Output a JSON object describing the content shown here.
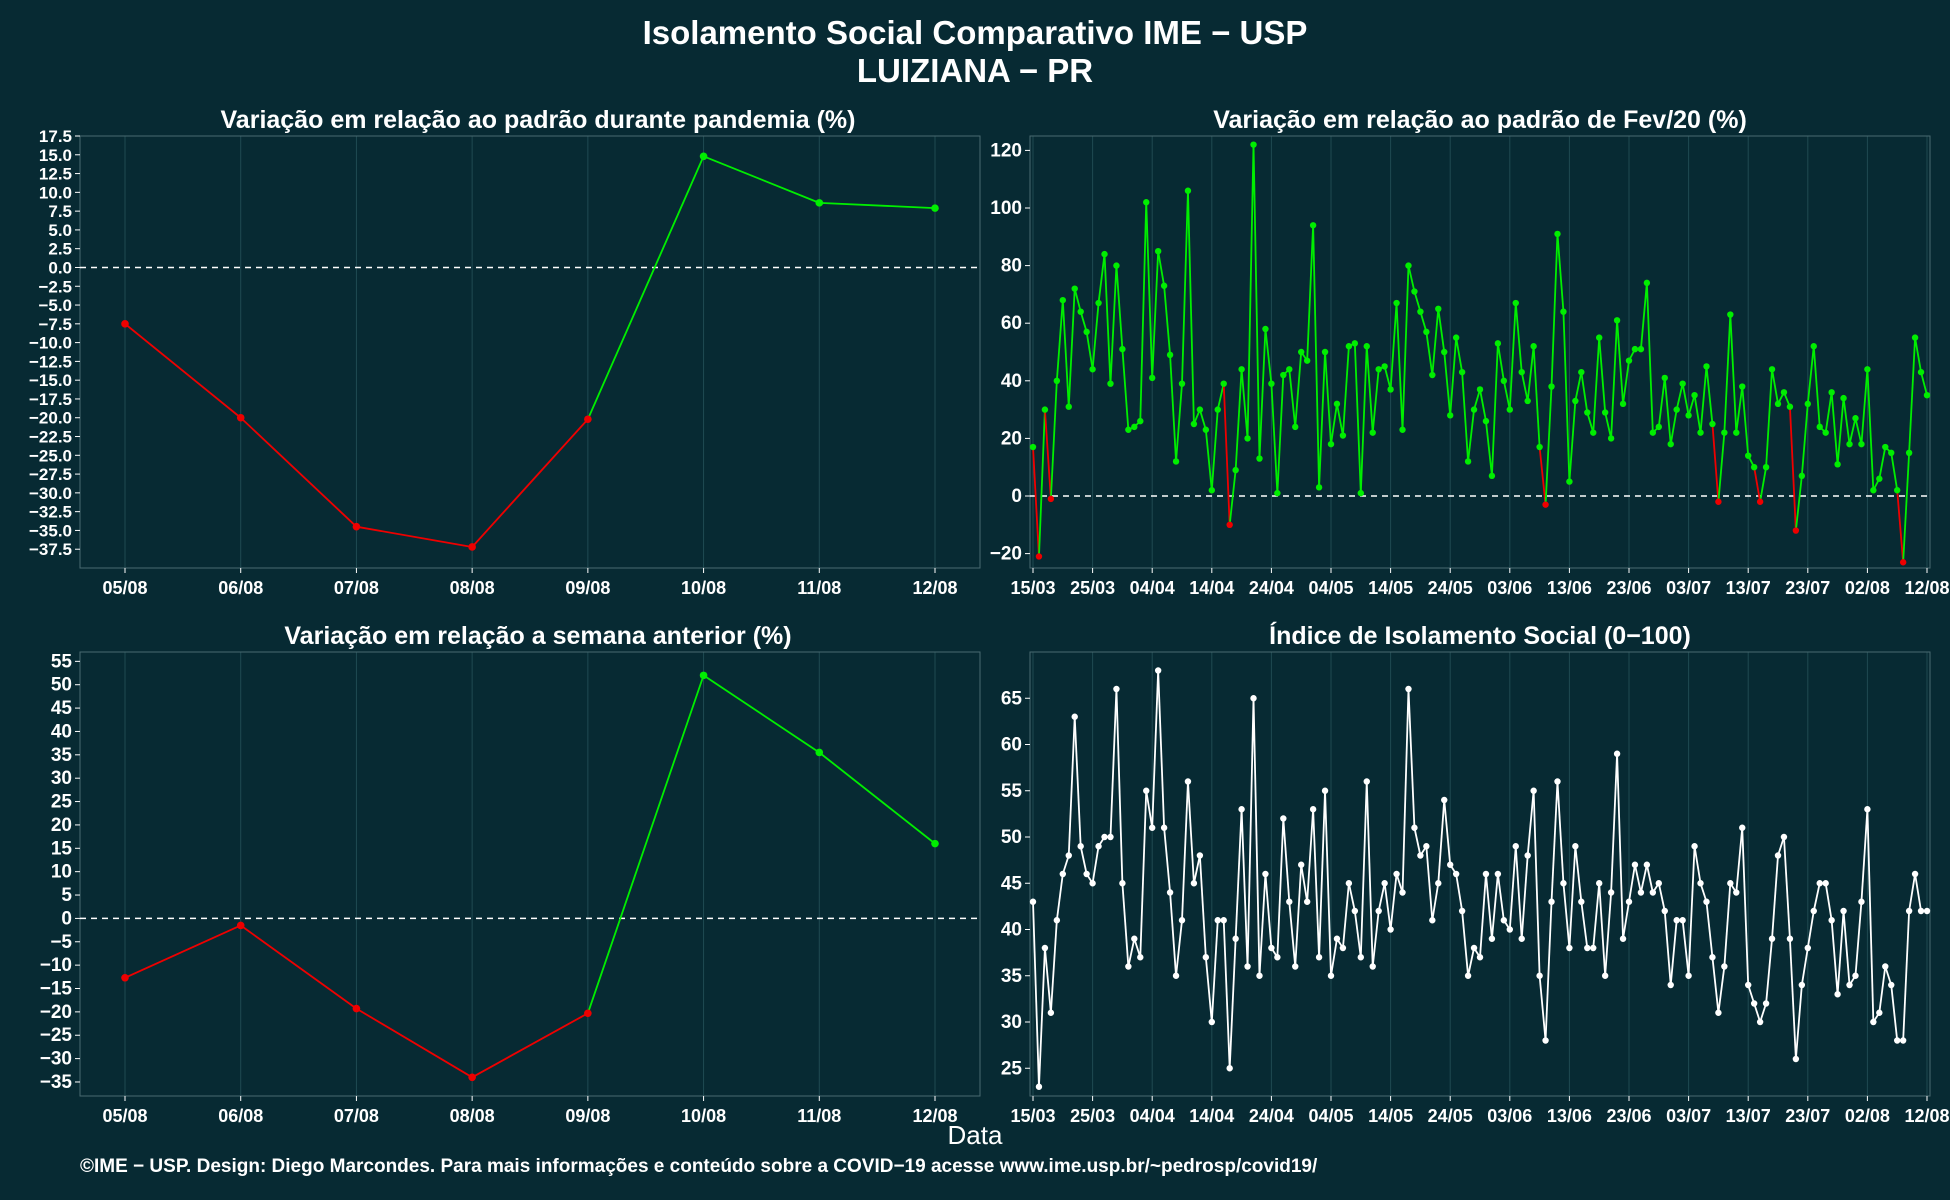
{
  "figure": {
    "title": "Isolamento Social Comparativo IME − USP",
    "subtitle": "LUIZIANA − PR",
    "xlabel": "Data",
    "footer": "©IME − USP. Design: Diego Marcondes. Para mais informações e conteúdo sobre a COVID−19 acesse www.ime.usp.br/~pedrosp/covid19/",
    "colors": {
      "background": "#072a33",
      "positive": "#00ee00",
      "negative": "#ee0000",
      "index": "#ffffff",
      "grid": "#1f4a52",
      "zero_line": "#ffffff"
    }
  },
  "chart_data": [
    {
      "type": "line",
      "title": "Variação em relação ao padrão durante pandemia (%)",
      "categories": [
        "05/08",
        "06/08",
        "07/08",
        "08/08",
        "09/08",
        "10/08",
        "11/08",
        "12/08"
      ],
      "values": [
        -7.5,
        -20,
        -34.5,
        -37.2,
        -20.2,
        14.8,
        8.6,
        7.9
      ],
      "ylim": [
        -40,
        17.5
      ],
      "yticks": [
        17.5,
        15,
        12.5,
        10,
        7.5,
        5,
        2.5,
        0,
        -2.5,
        -5,
        -7.5,
        -10,
        -12.5,
        -15,
        -17.5,
        -20,
        -22.5,
        -25,
        -27.5,
        -30,
        -32.5,
        -35,
        -37.5
      ],
      "ytick_labels": [
        "17.5",
        "15.0",
        "12.5",
        "10.0",
        "7.5",
        "5.0",
        "2.5",
        "0.0",
        "−2.5",
        "−5.0",
        "−7.5",
        "−10.0",
        "−12.5",
        "−15.0",
        "−17.5",
        "−20.0",
        "−22.5",
        "−25.0",
        "−27.5",
        "−30.0",
        "−32.5",
        "−35.0",
        "−37.5"
      ],
      "zero_line": true
    },
    {
      "type": "line",
      "title": "Variação em relação ao padrão de Fev/20 (%)",
      "x_start": "2020-03-15",
      "x_end": "2020-08-12",
      "x_tick_labels": [
        "15/03",
        "25/03",
        "04/04",
        "14/04",
        "24/04",
        "04/05",
        "14/05",
        "24/05",
        "03/06",
        "13/06",
        "23/06",
        "03/07",
        "13/07",
        "23/07",
        "02/08",
        "12/08"
      ],
      "values": [
        17,
        -21,
        30,
        -1,
        40,
        68,
        31,
        72,
        64,
        57,
        44,
        67,
        84,
        39,
        80,
        51,
        23,
        24,
        26,
        102,
        41,
        85,
        73,
        49,
        12,
        39,
        106,
        25,
        30,
        23,
        2,
        30,
        39,
        -10,
        9,
        44,
        20,
        122,
        13,
        58,
        39,
        1,
        42,
        44,
        24,
        50,
        47,
        94,
        3,
        50,
        18,
        32,
        21,
        52,
        53,
        1,
        52,
        22,
        44,
        45,
        37,
        67,
        23,
        80,
        71,
        64,
        57,
        42,
        65,
        50,
        28,
        55,
        43,
        12,
        30,
        37,
        26,
        7,
        53,
        40,
        30,
        67,
        43,
        33,
        52,
        17,
        -3,
        38,
        91,
        64,
        5,
        33,
        43,
        29,
        22,
        55,
        29,
        20,
        61,
        32,
        47,
        51,
        51,
        74,
        22,
        24,
        41,
        18,
        30,
        39,
        28,
        35,
        22,
        45,
        25,
        -2,
        22,
        63,
        22,
        38,
        14,
        10,
        -2,
        10,
        44,
        32,
        36,
        31,
        -12,
        7,
        32,
        52,
        24,
        22,
        36,
        11,
        34,
        18,
        27,
        18,
        44,
        2,
        6,
        17,
        15,
        2,
        -23,
        15,
        55,
        43,
        35
      ],
      "ylim": [
        -25,
        125
      ],
      "yticks": [
        -20,
        0,
        20,
        40,
        60,
        80,
        100,
        120
      ],
      "ytick_labels": [
        "−20",
        "0",
        "20",
        "40",
        "60",
        "80",
        "100",
        "120"
      ],
      "zero_line": true
    },
    {
      "type": "line",
      "title": "Variação em relação a semana anterior (%)",
      "categories": [
        "05/08",
        "06/08",
        "07/08",
        "08/08",
        "09/08",
        "10/08",
        "11/08",
        "12/08"
      ],
      "values": [
        -12.7,
        -1.5,
        -19.3,
        -34,
        -20.3,
        52,
        35.5,
        16
      ],
      "ylim": [
        -38,
        57
      ],
      "yticks": [
        55,
        50,
        45,
        40,
        35,
        30,
        25,
        20,
        15,
        10,
        5,
        0,
        -5,
        -10,
        -15,
        -20,
        -25,
        -30,
        -35
      ],
      "ytick_labels": [
        "55",
        "50",
        "45",
        "40",
        "35",
        "30",
        "25",
        "20",
        "15",
        "10",
        "5",
        "0",
        "−5",
        "−10",
        "−15",
        "−20",
        "−25",
        "−30",
        "−35"
      ],
      "zero_line": true
    },
    {
      "type": "line",
      "title": "Índice de Isolamento Social (0−100)",
      "x_start": "2020-03-15",
      "x_end": "2020-08-12",
      "x_tick_labels": [
        "15/03",
        "25/03",
        "04/04",
        "14/04",
        "24/04",
        "04/05",
        "14/05",
        "24/05",
        "03/06",
        "13/06",
        "23/06",
        "03/07",
        "13/07",
        "23/07",
        "02/08",
        "12/08"
      ],
      "values": [
        43,
        23,
        38,
        31,
        41,
        46,
        48,
        63,
        49,
        46,
        45,
        49,
        50,
        50,
        66,
        45,
        36,
        39,
        37,
        55,
        51,
        68,
        51,
        44,
        35,
        41,
        56,
        45,
        48,
        37,
        30,
        41,
        41,
        25,
        39,
        53,
        36,
        65,
        35,
        46,
        38,
        37,
        52,
        43,
        36,
        47,
        43,
        53,
        37,
        55,
        35,
        39,
        38,
        45,
        42,
        37,
        56,
        36,
        42,
        45,
        40,
        46,
        44,
        66,
        51,
        48,
        49,
        41,
        45,
        54,
        47,
        46,
        42,
        35,
        38,
        37,
        46,
        39,
        46,
        41,
        40,
        49,
        39,
        48,
        55,
        35,
        28,
        43,
        56,
        45,
        38,
        49,
        43,
        38,
        38,
        45,
        35,
        44,
        59,
        39,
        43,
        47,
        44,
        47,
        44,
        45,
        42,
        34,
        41,
        41,
        35,
        49,
        45,
        43,
        37,
        31,
        36,
        45,
        44,
        51,
        34,
        32,
        30,
        32,
        39,
        48,
        50,
        39,
        26,
        34,
        38,
        42,
        45,
        45,
        41,
        33,
        42,
        34,
        35,
        43,
        53,
        30,
        31,
        36,
        34,
        28,
        28,
        42,
        46,
        42,
        42
      ],
      "ylim": [
        22,
        70
      ],
      "yticks": [
        25,
        30,
        35,
        40,
        45,
        50,
        55,
        60,
        65
      ],
      "ytick_labels": [
        "25",
        "30",
        "35",
        "40",
        "45",
        "50",
        "55",
        "60",
        "65"
      ],
      "zero_line": false
    }
  ]
}
